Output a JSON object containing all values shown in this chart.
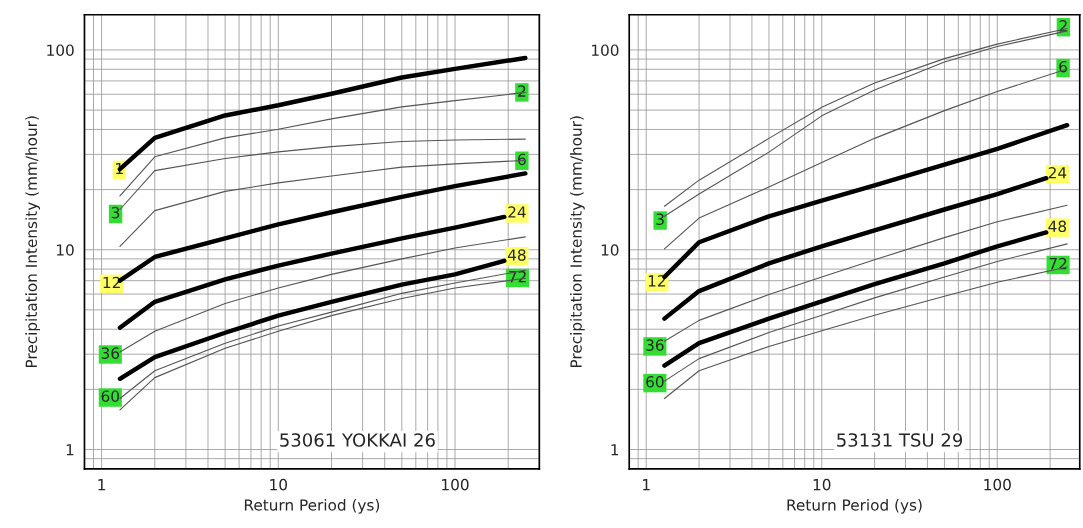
{
  "chart_data": [
    {
      "type": "line",
      "xlabel": "Return Period (ys)",
      "ylabel": "Precipitation Intensity (mm/hour)",
      "log": "xy",
      "grid": true,
      "marker": "none",
      "line_style": "solid",
      "xlim": [
        0.8,
        300
      ],
      "ylim": [
        0.8,
        150
      ],
      "xticks": [
        1,
        10,
        100
      ],
      "yticks": [
        1,
        10,
        100
      ],
      "x": [
        1.27,
        2,
        5,
        10,
        20,
        50,
        100,
        250
      ],
      "series": [
        {
          "color": "#000000",
          "values": [
            25.3,
            36.3,
            47.0,
            52.9,
            60.4,
            72.8,
            80.4,
            91.2
          ]
        },
        {
          "color": "#555555",
          "values": [
            18.6,
            29.2,
            36.3,
            40.1,
            45.2,
            51.9,
            55.8,
            61.3
          ]
        },
        {
          "color": "#555555",
          "values": [
            15.9,
            24.9,
            28.6,
            30.9,
            32.8,
            34.8,
            35.4,
            35.8
          ]
        },
        {
          "color": "#555555",
          "values": [
            10.4,
            15.7,
            19.6,
            21.6,
            23.4,
            25.9,
            26.9,
            28.0
          ]
        },
        {
          "color": "#000000",
          "values": [
            7.0,
            9.2,
            11.4,
            13.4,
            15.4,
            18.4,
            20.8,
            24.1
          ]
        },
        {
          "color": "#000000",
          "x": [
            1.27,
            2,
            5,
            10,
            20,
            50,
            100,
            190
          ],
          "values": [
            4.07,
            5.49,
            7.1,
            8.33,
            9.57,
            11.4,
            12.9,
            14.6
          ]
        },
        {
          "color": "#555555",
          "values": [
            3.08,
            3.91,
            5.38,
            6.43,
            7.53,
            9.0,
            10.2,
            11.6
          ]
        },
        {
          "color": "#000000",
          "x": [
            1.27,
            2,
            5,
            10,
            20,
            50,
            100,
            190
          ],
          "values": [
            2.26,
            2.9,
            3.84,
            4.68,
            5.48,
            6.69,
            7.53,
            8.8
          ]
        },
        {
          "color": "#555555",
          "values": [
            1.8,
            2.48,
            3.4,
            4.15,
            4.87,
            6.05,
            6.82,
            7.9
          ]
        },
        {
          "color": "#555555",
          "values": [
            1.58,
            2.29,
            3.21,
            3.91,
            4.68,
            5.7,
            6.43,
            7.2
          ]
        }
      ],
      "annotations": [
        {
          "text": "1",
          "x": 1.26,
          "y": 25.1
        },
        {
          "text": "3",
          "x": 1.2,
          "y": 15.1
        },
        {
          "text": "12",
          "x": 1.14,
          "y": 6.75
        },
        {
          "text": "36",
          "x": 1.12,
          "y": 2.99
        },
        {
          "text": "60",
          "x": 1.12,
          "y": 1.82
        },
        {
          "text": "2",
          "x": 239,
          "y": 61.3
        },
        {
          "text": "6",
          "x": 239,
          "y": 27.9
        },
        {
          "text": "24",
          "x": 224,
          "y": 15.2
        },
        {
          "text": "48",
          "x": 224,
          "y": 9.27
        },
        {
          "text": "72",
          "x": 226,
          "y": 7.22
        },
        "53061 YOKKAI 26"
      ]
    },
    {
      "type": "line",
      "xlabel": "Return Period (ys)",
      "ylabel": "Precipitation Intensity (mm/hour)",
      "log": "xy",
      "grid": true,
      "marker": "none",
      "line_style": "solid",
      "xlim": [
        0.8,
        295
      ],
      "ylim": [
        0.8,
        150
      ],
      "xticks": [
        1,
        10,
        100
      ],
      "yticks": [
        1,
        10,
        100
      ],
      "x": [
        1.27,
        2,
        5,
        10,
        20,
        50,
        100,
        250
      ],
      "series": [
        {
          "color": "#555555",
          "values": [
            16.5,
            22.3,
            36.1,
            51.7,
            68.4,
            90.5,
            107,
            128
          ]
        },
        {
          "color": "#555555",
          "values": [
            14.7,
            19.0,
            30.8,
            46.8,
            63.1,
            87,
            104,
            124.6
          ]
        },
        {
          "color": "#555555",
          "values": [
            10.1,
            14.4,
            20.6,
            27.3,
            36.1,
            49.7,
            61.9,
            80.3
          ]
        },
        {
          "color": "#000000",
          "values": [
            7.3,
            10.9,
            14.7,
            17.6,
            21.0,
            26.7,
            32.0,
            42.0
          ]
        },
        {
          "color": "#000000",
          "x": [
            1.27,
            2,
            5,
            10,
            20,
            50,
            100,
            190
          ],
          "values": [
            4.52,
            6.21,
            8.55,
            10.4,
            12.5,
            15.9,
            19.0,
            22.8
          ]
        },
        {
          "color": "#555555",
          "values": [
            3.48,
            4.43,
            5.97,
            7.3,
            8.91,
            11.5,
            13.8,
            16.7
          ]
        },
        {
          "color": "#000000",
          "x": [
            1.27,
            2,
            5,
            10,
            20,
            50,
            100,
            190
          ],
          "values": [
            2.63,
            3.41,
            4.52,
            5.51,
            6.73,
            8.55,
            10.4,
            12.2
          ]
        },
        {
          "color": "#555555",
          "values": [
            2.2,
            2.85,
            3.85,
            4.7,
            5.74,
            7.3,
            8.73,
            10.7
          ]
        },
        {
          "color": "#555555",
          "values": [
            1.8,
            2.48,
            3.28,
            3.93,
            4.7,
            5.85,
            6.87,
            8.2
          ]
        }
      ],
      "annotations": [
        {
          "text": "3",
          "x": 1.2,
          "y": 14.0
        },
        {
          "text": "12",
          "x": 1.15,
          "y": 6.88
        },
        {
          "text": "36",
          "x": 1.12,
          "y": 3.28
        },
        {
          "text": "60",
          "x": 1.12,
          "y": 2.15
        },
        {
          "text": "2",
          "x": 238,
          "y": 130
        },
        {
          "text": "6",
          "x": 237,
          "y": 81.2
        },
        {
          "text": "24",
          "x": 220,
          "y": 23.9
        },
        {
          "text": "48",
          "x": 220,
          "y": 12.9
        },
        {
          "text": "72",
          "x": 222,
          "y": 8.39
        },
        "53131 TSU 29"
      ]
    }
  ]
}
